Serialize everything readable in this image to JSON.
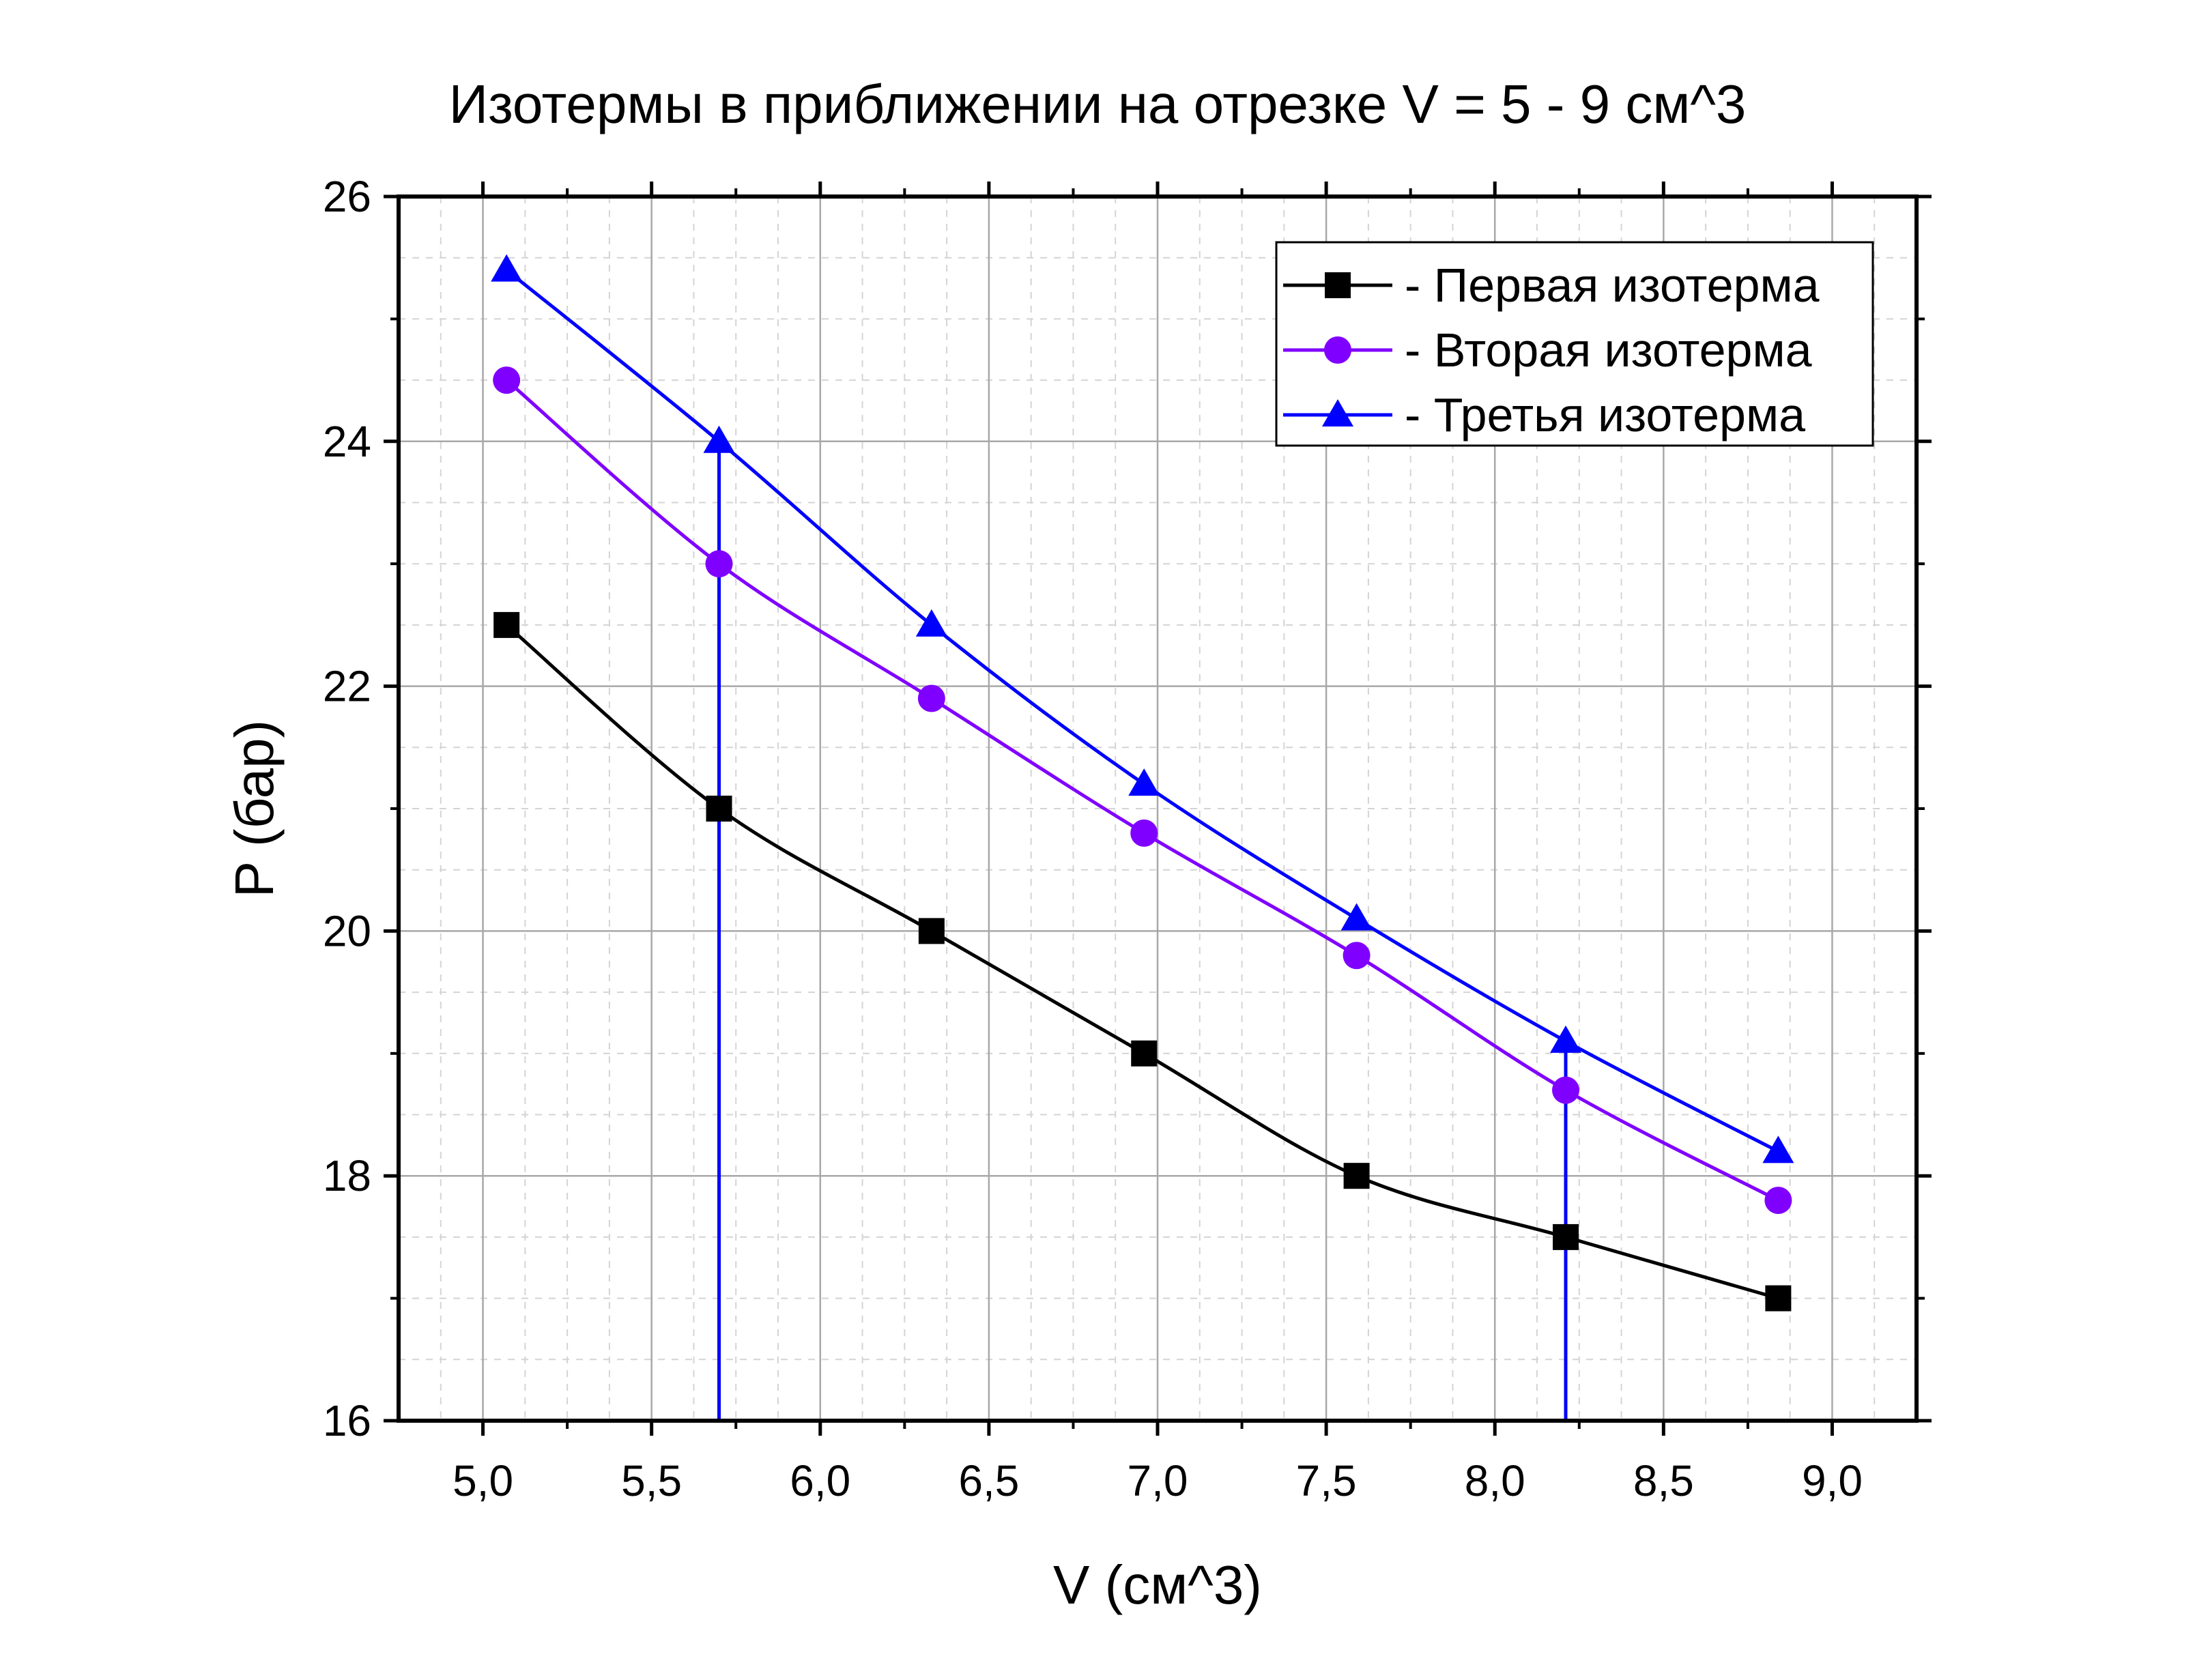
{
  "chart_data": {
    "type": "line",
    "title": "Изотермы в приближении на отрезке V = 5 - 9 см^3",
    "xlabel": "V (см^3)",
    "ylabel": "P (бар)",
    "xlim": [
      4.75,
      9.25
    ],
    "ylim": [
      16,
      26
    ],
    "x_ticks": [
      5.0,
      5.5,
      6.0,
      6.5,
      7.0,
      7.5,
      8.0,
      8.5,
      9.0
    ],
    "x_tick_labels": [
      "5,0",
      "5,5",
      "6,0",
      "6,5",
      "7,0",
      "7,5",
      "8,0",
      "8,5",
      "9,0"
    ],
    "y_ticks": [
      16,
      18,
      20,
      22,
      24,
      26
    ],
    "y_tick_labels": [
      "16",
      "18",
      "20",
      "22",
      "24",
      "26"
    ],
    "grid": true,
    "legend_position": "top-right",
    "x": [
      5.07,
      5.7,
      6.33,
      6.96,
      7.59,
      8.21,
      8.84
    ],
    "series": [
      {
        "name": "- Первая изотерма",
        "color": "#000000",
        "marker": "square",
        "values": [
          22.5,
          21.0,
          20.0,
          19.0,
          18.0,
          17.5,
          17.0
        ]
      },
      {
        "name": "- Вторая изотерма",
        "color": "#8000ff",
        "marker": "circle",
        "values": [
          24.5,
          23.0,
          21.9,
          20.8,
          19.8,
          18.7,
          17.8
        ]
      },
      {
        "name": "- Третья изотерма",
        "color": "#0000ff",
        "marker": "triangle",
        "values": [
          25.4,
          24.0,
          22.5,
          21.2,
          20.1,
          19.1,
          18.2
        ]
      }
    ],
    "vertical_lines": [
      {
        "x": 5.7,
        "y_top": 24.0,
        "color": "#0000ff"
      },
      {
        "x": 8.21,
        "y_top": 19.1,
        "color": "#0000ff"
      }
    ]
  }
}
